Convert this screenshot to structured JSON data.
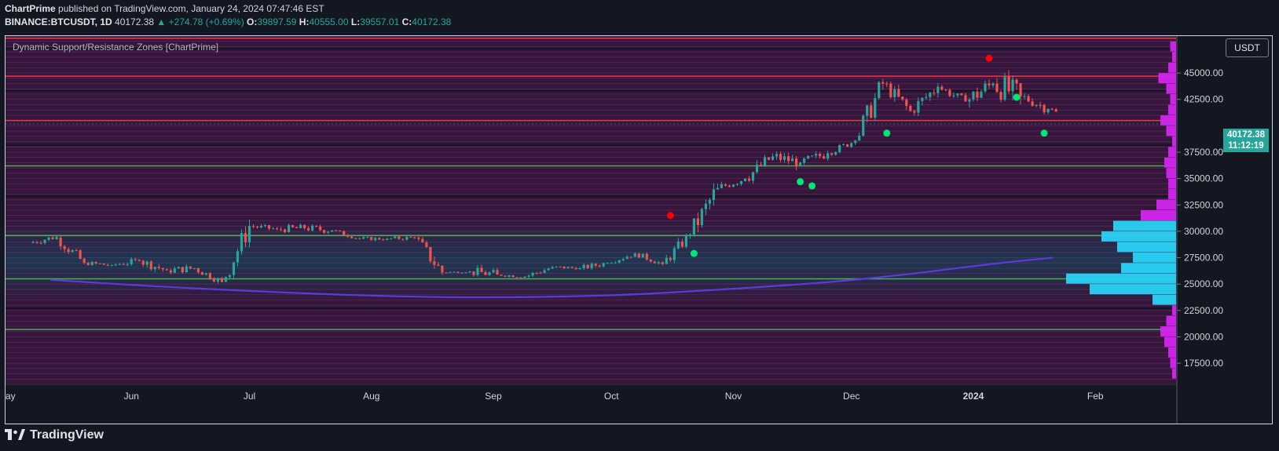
{
  "header": {
    "author": "ChartPrime",
    "published_text": "published on TradingView.com, January 24, 2024 07:47:46 EST",
    "symbol": "BINANCE:BTCUSDT, 1D",
    "last": "40172.38",
    "change": "▲ +274.78 (+0.69%)",
    "o_label": "O:",
    "o_value": "39897.59",
    "h_label": "H:",
    "h_value": "40555.00",
    "l_label": "L:",
    "l_value": "39557.01",
    "c_label": "C:",
    "c_value": "40172.38"
  },
  "indicator_name": "Dynamic Support/Resistance Zones [ChartPrime]",
  "currency_button": "USDT",
  "price_tag": {
    "price": "40172.38",
    "countdown": "11:12:19"
  },
  "footer": {
    "brand": "TradingView",
    "logo_icon": "tradingview-logo-icon"
  },
  "colors": {
    "background": "#131722",
    "up": "#26a69a",
    "down": "#ef5350",
    "resistance": "#f23645",
    "support": "#4caf50",
    "zone": "#7a1e6e",
    "ma": "#5b3bd9"
  },
  "chart_data": {
    "type": "candlestick",
    "symbol": "BINANCE:BTCUSDT",
    "interval": "1D",
    "ylim": [
      15500,
      48500
    ],
    "y_ticks": [
      "45000.00",
      "42500.00",
      "37500.00",
      "35000.00",
      "32500.00",
      "30000.00",
      "27500.00",
      "25000.00",
      "22500.00",
      "20000.00",
      "17500.00"
    ],
    "x_ticks": [
      "ay",
      "Jun",
      "Jul",
      "Aug",
      "Sep",
      "Oct",
      "Nov",
      "Dec",
      "2024",
      "Feb"
    ],
    "resistance_levels": [
      48300,
      44700,
      40500
    ],
    "support_levels": [
      36200,
      29600,
      25500,
      20700
    ],
    "zone_boundaries": [
      47300,
      43300,
      38200,
      33300,
      22700
    ],
    "moving_average": [
      [
        5,
        25400
      ],
      [
        20,
        24600
      ],
      [
        45,
        23700
      ],
      [
        65,
        23800
      ],
      [
        80,
        24500
      ],
      [
        95,
        25400
      ],
      [
        110,
        27000
      ],
      [
        116,
        27500
      ]
    ],
    "signals": [
      {
        "date": "2023-10-16",
        "price": 31500,
        "type": "sell",
        "color": "#ff0000"
      },
      {
        "date": "2023-10-22",
        "price": 27900,
        "type": "buy",
        "color": "#00e676"
      },
      {
        "date": "2023-11-18",
        "price": 34700,
        "type": "buy",
        "color": "#00e676"
      },
      {
        "date": "2023-11-21",
        "price": 34300,
        "type": "buy",
        "color": "#00e676"
      },
      {
        "date": "2023-12-10",
        "price": 39300,
        "type": "buy",
        "color": "#00e676"
      },
      {
        "date": "2024-01-05",
        "price": 46400,
        "type": "sell",
        "color": "#ff0000"
      },
      {
        "date": "2024-01-12",
        "price": 42700,
        "type": "buy",
        "color": "#00e676"
      },
      {
        "date": "2024-01-19",
        "price": 39300,
        "type": "buy",
        "color": "#00e676"
      }
    ],
    "volume_profile": [
      {
        "price": 16500,
        "width": 1
      },
      {
        "price": 17500,
        "width": 1.5
      },
      {
        "price": 18500,
        "width": 2
      },
      {
        "price": 19500,
        "width": 3
      },
      {
        "price": 20500,
        "width": 4
      },
      {
        "price": 21500,
        "width": 2.5
      },
      {
        "price": 22500,
        "width": 1
      },
      {
        "price": 23500,
        "width": 6
      },
      {
        "price": 24500,
        "width": 22
      },
      {
        "price": 25500,
        "width": 28
      },
      {
        "price": 26500,
        "width": 14
      },
      {
        "price": 27500,
        "width": 11
      },
      {
        "price": 28500,
        "width": 15
      },
      {
        "price": 29500,
        "width": 19
      },
      {
        "price": 30500,
        "width": 16
      },
      {
        "price": 31500,
        "width": 9
      },
      {
        "price": 32500,
        "width": 5
      },
      {
        "price": 33500,
        "width": 2
      },
      {
        "price": 34500,
        "width": 2
      },
      {
        "price": 35500,
        "width": 2.5
      },
      {
        "price": 36500,
        "width": 3
      },
      {
        "price": 37500,
        "width": 2
      },
      {
        "price": 38500,
        "width": 1
      },
      {
        "price": 39500,
        "width": 2.5
      },
      {
        "price": 40500,
        "width": 4
      },
      {
        "price": 41500,
        "width": 2
      },
      {
        "price": 42500,
        "width": 1.5
      },
      {
        "price": 43500,
        "width": 2.5
      },
      {
        "price": 44500,
        "width": 4.5
      },
      {
        "price": 45500,
        "width": 2
      },
      {
        "price": 46500,
        "width": 1
      },
      {
        "price": 47500,
        "width": 1.5
      }
    ],
    "candles_weekly_approx": [
      {
        "date": "2023-05-07",
        "o": 28900,
        "h": 29800,
        "l": 28000,
        "c": 29500
      },
      {
        "date": "2023-05-14",
        "o": 29400,
        "h": 29600,
        "l": 26600,
        "c": 27000
      },
      {
        "date": "2023-05-21",
        "o": 27000,
        "h": 27500,
        "l": 26300,
        "c": 26800
      },
      {
        "date": "2023-05-28",
        "o": 26800,
        "h": 28400,
        "l": 26700,
        "c": 27200
      },
      {
        "date": "2023-06-04",
        "o": 27200,
        "h": 28000,
        "l": 25600,
        "c": 26300
      },
      {
        "date": "2023-06-11",
        "o": 26300,
        "h": 27500,
        "l": 25500,
        "c": 26500
      },
      {
        "date": "2023-06-18",
        "o": 26500,
        "h": 26800,
        "l": 24900,
        "c": 25200
      },
      {
        "date": "2023-06-25",
        "o": 25200,
        "h": 31100,
        "l": 25200,
        "c": 30500
      },
      {
        "date": "2023-07-02",
        "o": 30500,
        "h": 31300,
        "l": 29800,
        "c": 30200
      },
      {
        "date": "2023-07-09",
        "o": 30200,
        "h": 31800,
        "l": 29800,
        "c": 30300
      },
      {
        "date": "2023-07-16",
        "o": 30300,
        "h": 31600,
        "l": 29600,
        "c": 30100
      },
      {
        "date": "2023-07-23",
        "o": 30100,
        "h": 30300,
        "l": 29200,
        "c": 29300
      },
      {
        "date": "2023-07-30",
        "o": 29300,
        "h": 29800,
        "l": 28800,
        "c": 29300
      },
      {
        "date": "2023-08-06",
        "o": 29300,
        "h": 30200,
        "l": 29000,
        "c": 29400
      },
      {
        "date": "2023-08-13",
        "o": 29400,
        "h": 29700,
        "l": 25800,
        "c": 26100
      },
      {
        "date": "2023-08-20",
        "o": 26100,
        "h": 26400,
        "l": 25900,
        "c": 26200
      },
      {
        "date": "2023-08-27",
        "o": 26200,
        "h": 28200,
        "l": 25700,
        "c": 25900
      },
      {
        "date": "2023-09-03",
        "o": 25900,
        "h": 26200,
        "l": 25300,
        "c": 25700
      },
      {
        "date": "2023-09-10",
        "o": 25700,
        "h": 27100,
        "l": 25300,
        "c": 26600
      },
      {
        "date": "2023-09-17",
        "o": 26600,
        "h": 27400,
        "l": 26400,
        "c": 26500
      },
      {
        "date": "2023-09-24",
        "o": 26500,
        "h": 27500,
        "l": 26000,
        "c": 27000
      },
      {
        "date": "2023-10-01",
        "o": 27000,
        "h": 28500,
        "l": 27000,
        "c": 27900
      },
      {
        "date": "2023-10-08",
        "o": 27900,
        "h": 28100,
        "l": 26600,
        "c": 26900
      },
      {
        "date": "2023-10-15",
        "o": 26900,
        "h": 30000,
        "l": 26800,
        "c": 29700
      },
      {
        "date": "2023-10-22",
        "o": 29700,
        "h": 35200,
        "l": 29500,
        "c": 34100
      },
      {
        "date": "2023-10-29",
        "o": 34100,
        "h": 35600,
        "l": 33400,
        "c": 35000
      },
      {
        "date": "2023-11-05",
        "o": 35000,
        "h": 38000,
        "l": 34400,
        "c": 37100
      },
      {
        "date": "2023-11-12",
        "o": 37100,
        "h": 37900,
        "l": 34800,
        "c": 36500
      },
      {
        "date": "2023-11-19",
        "o": 36500,
        "h": 38400,
        "l": 35700,
        "c": 37400
      },
      {
        "date": "2023-11-26",
        "o": 37400,
        "h": 38900,
        "l": 37100,
        "c": 38600
      },
      {
        "date": "2023-12-03",
        "o": 38600,
        "h": 44700,
        "l": 38600,
        "c": 44000
      },
      {
        "date": "2023-12-10",
        "o": 44000,
        "h": 44200,
        "l": 40300,
        "c": 41400
      },
      {
        "date": "2023-12-17",
        "o": 41400,
        "h": 44300,
        "l": 40500,
        "c": 43700
      },
      {
        "date": "2023-12-24",
        "o": 43700,
        "h": 43900,
        "l": 41500,
        "c": 42300
      },
      {
        "date": "2023-12-31",
        "o": 42300,
        "h": 45800,
        "l": 40700,
        "c": 44000
      },
      {
        "date": "2024-01-07",
        "o": 44000,
        "h": 48900,
        "l": 41700,
        "c": 42800
      },
      {
        "date": "2024-01-14",
        "o": 42800,
        "h": 43500,
        "l": 40600,
        "c": 41600
      },
      {
        "date": "2024-01-21",
        "o": 41600,
        "h": 41700,
        "l": 38600,
        "c": 40172
      }
    ]
  }
}
